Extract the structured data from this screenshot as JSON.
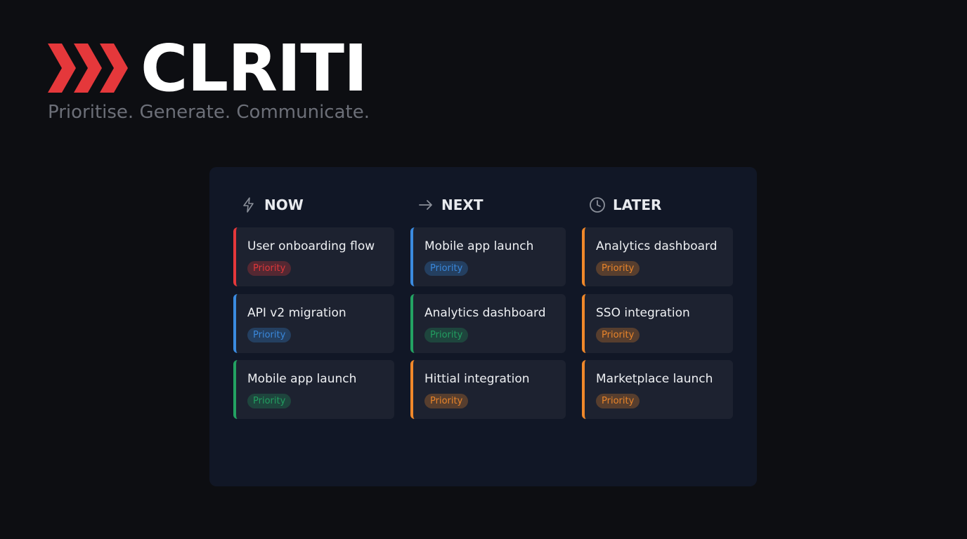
{
  "brand": {
    "name": "CLRITI",
    "tagline": "Prioritise. Generate. Communicate.",
    "accent": "#e5383b"
  },
  "columns": [
    {
      "label": "NOW",
      "icon": "lightning-icon",
      "cards": [
        {
          "title": "User onboarding flow",
          "badge": "Priority",
          "color": "#e5383b"
        },
        {
          "title": "API v2 migration",
          "badge": "Priority",
          "color": "#3b8be0"
        },
        {
          "title": "Mobile app launch",
          "badge": "Priority",
          "color": "#23a262"
        }
      ]
    },
    {
      "label": "NEXT",
      "icon": "arrow-right-icon",
      "cards": [
        {
          "title": "Mobile app launch",
          "badge": "Priority",
          "color": "#3b8be0"
        },
        {
          "title": "Analytics dashboard",
          "badge": "Priority",
          "color": "#23a262"
        },
        {
          "title": "Hittial integration",
          "badge": "Priority",
          "color": "#f0882a"
        }
      ]
    },
    {
      "label": "LATER",
      "icon": "clock-icon",
      "cards": [
        {
          "title": "Analytics dashboard",
          "badge": "Priority",
          "color": "#f0882a"
        },
        {
          "title": "SSO integration",
          "badge": "Priority",
          "color": "#f0882a"
        },
        {
          "title": "Marketplace launch",
          "badge": "Priority",
          "color": "#f0882a"
        }
      ]
    }
  ]
}
